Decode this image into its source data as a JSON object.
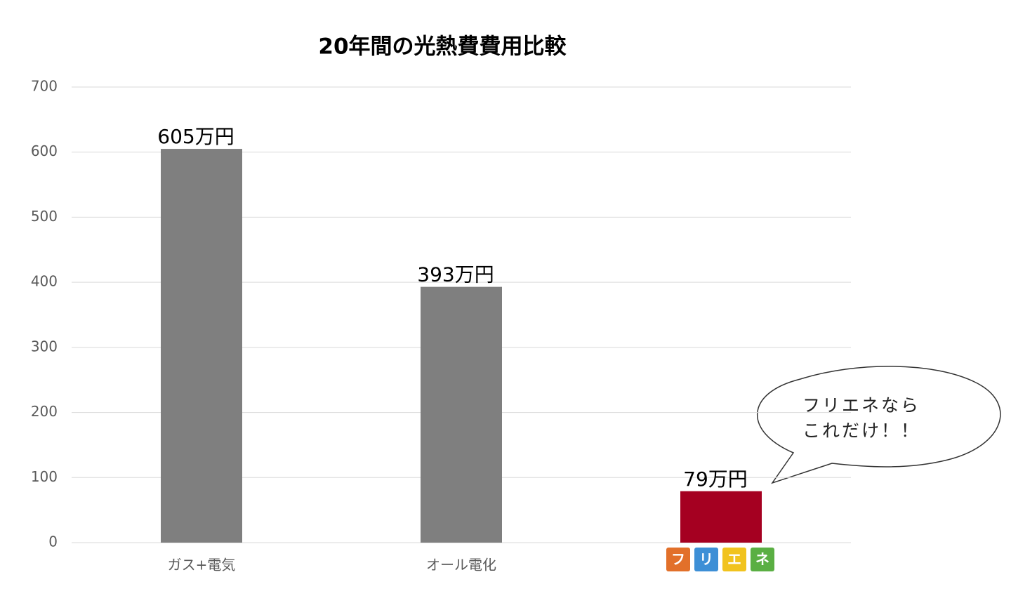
{
  "chart_data": {
    "type": "bar",
    "title": "20年間の光熱費費用比較",
    "categories": [
      "ガス+電気",
      "オール電化",
      null
    ],
    "category_logo": [
      "フ",
      "リ",
      "エ",
      "ネ"
    ],
    "values": [
      605,
      393,
      79
    ],
    "value_labels": [
      "605万円",
      "393万円",
      "79万円"
    ],
    "colors": [
      "#7f7f7f",
      "#7f7f7f",
      "#a50021"
    ],
    "ylim": [
      0,
      700
    ],
    "yticks": [
      0,
      100,
      200,
      300,
      400,
      500,
      600,
      700
    ],
    "grid": true,
    "annotation": [
      "フリエネなら",
      "これだけ！！"
    ]
  }
}
